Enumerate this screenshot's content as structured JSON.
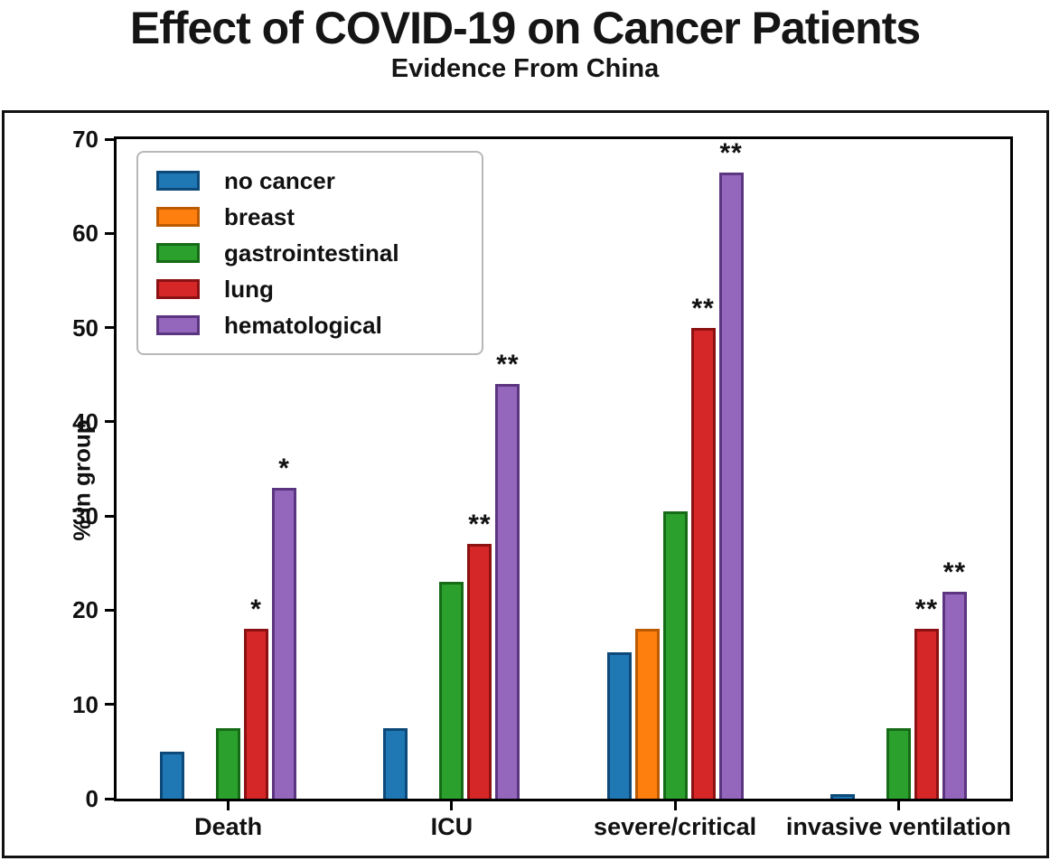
{
  "title": "Effect of COVID-19 on Cancer Patients",
  "subtitle": "Evidence From China",
  "chart_data": {
    "type": "bar",
    "title": "Effect of COVID-19 on Cancer Patients",
    "subtitle": "Evidence From China",
    "categories": [
      "Death",
      "ICU",
      "severe/critical",
      "invasive ventilation"
    ],
    "series": [
      {
        "name": "no cancer",
        "color": "#1f77b4",
        "edge_color": "#0d4a7a",
        "values": [
          5,
          7.5,
          15.5,
          0.5
        ],
        "annotations": [
          "",
          "",
          "",
          ""
        ]
      },
      {
        "name": "breast",
        "color": "#ff7f0e",
        "edge_color": "#bc5a00",
        "values": [
          0,
          0,
          18,
          0
        ],
        "annotations": [
          "",
          "",
          "",
          ""
        ]
      },
      {
        "name": "gastrointestinal",
        "color": "#2ca02c",
        "edge_color": "#166b16",
        "values": [
          7.5,
          23,
          30.5,
          7.5
        ],
        "annotations": [
          "",
          "",
          "",
          ""
        ]
      },
      {
        "name": "lung",
        "color": "#d62728",
        "edge_color": "#8c1112",
        "values": [
          18,
          27,
          50,
          18
        ],
        "annotations": [
          "*",
          "**",
          "**",
          "**"
        ]
      },
      {
        "name": "hematological",
        "color": "#9467bd",
        "edge_color": "#5c3580",
        "values": [
          33,
          44,
          66.5,
          22
        ],
        "annotations": [
          "*",
          "**",
          "**",
          "**"
        ]
      }
    ],
    "xlabel": "",
    "ylabel": "% in group",
    "ylim": [
      0,
      70
    ],
    "yticks": [
      0,
      10,
      20,
      30,
      40,
      50,
      60,
      70
    ],
    "legend_position": "upper left",
    "grid": false,
    "significance_markers": {
      "single": "*",
      "double": "**"
    },
    "axis_color": "#000000",
    "background_color": "#ffffff"
  }
}
